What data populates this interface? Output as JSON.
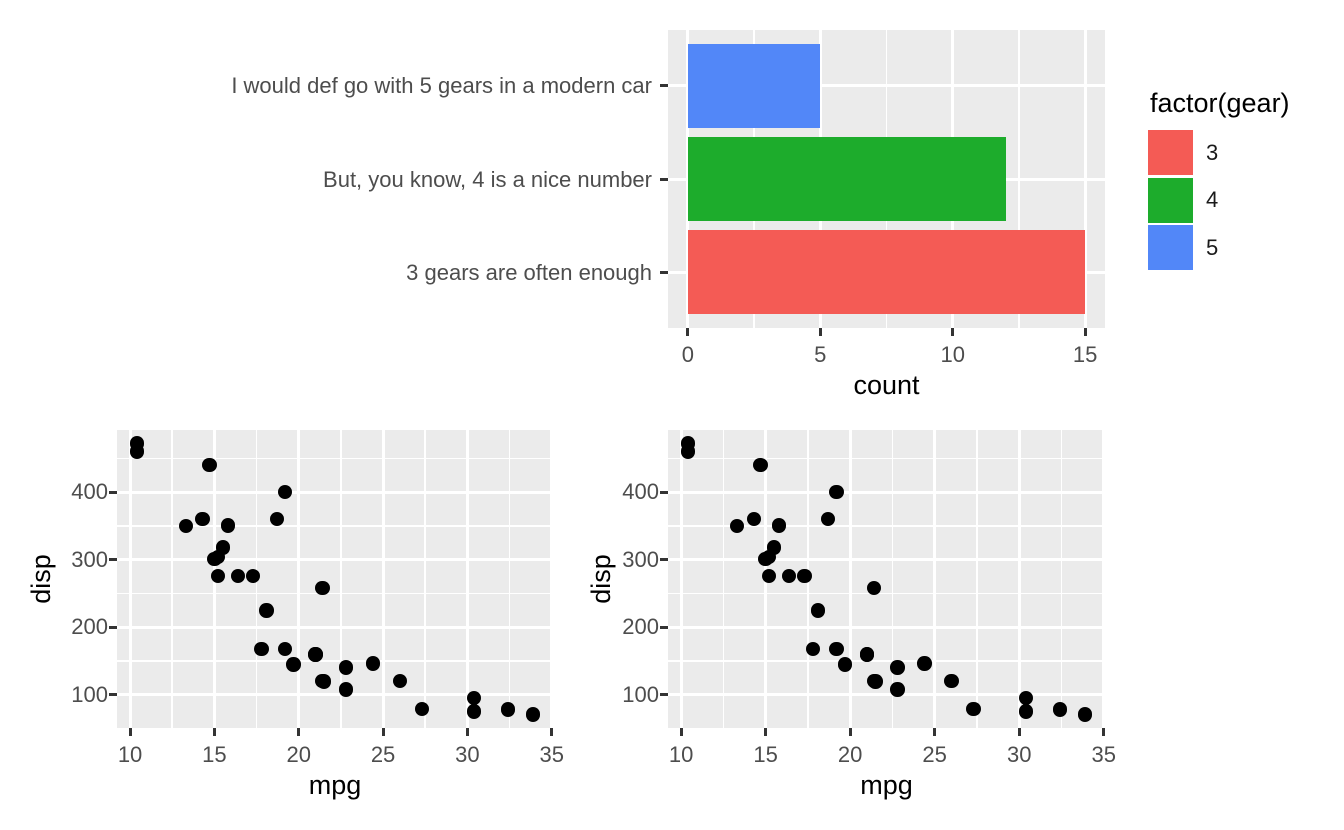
{
  "theme": {
    "background": "#FFFFFF",
    "panel_bg": "#EBEBEB",
    "grid_color": "#FFFFFF",
    "axis_text_color": "#4D4D4D",
    "axis_title_color": "#000000",
    "tick_color": "#333333",
    "point_color": "#000000"
  },
  "chart_data": [
    {
      "id": "gear-bar-chart",
      "type": "bar",
      "orientation": "horizontal",
      "xlabel": "count",
      "x_ticks": [
        0,
        5,
        10,
        15
      ],
      "xlim": [
        -0.75,
        15.75
      ],
      "grid": true,
      "rows": [
        {
          "label": "I would def go with 5 gears in a modern car",
          "gear": "5",
          "count": 5,
          "color": "#5287F8"
        },
        {
          "label": "But, you know, 4 is a nice number",
          "gear": "4",
          "count": 12,
          "color": "#1DAC2C"
        },
        {
          "label": "3 gears are often enough",
          "gear": "3",
          "count": 15,
          "color": "#F45B55"
        }
      ],
      "legend": {
        "title": "factor(gear)",
        "position": "right",
        "entries": [
          {
            "label": "3",
            "color": "#F45B55"
          },
          {
            "label": "4",
            "color": "#1DAC2C"
          },
          {
            "label": "5",
            "color": "#5287F8"
          }
        ]
      }
    },
    {
      "id": "mpg-disp-scatter-left",
      "type": "scatter",
      "xlabel": "mpg",
      "ylabel": "disp",
      "x_ticks": [
        10,
        15,
        20,
        25,
        30,
        35
      ],
      "y_ticks": [
        100,
        200,
        300,
        400
      ],
      "xlim": [
        9.225,
        35.075
      ],
      "ylim": [
        51.055,
        492.045
      ],
      "grid": true,
      "points": [
        [
          21.0,
          160
        ],
        [
          21.0,
          160
        ],
        [
          22.8,
          108
        ],
        [
          21.4,
          258
        ],
        [
          18.7,
          360
        ],
        [
          18.1,
          225
        ],
        [
          14.3,
          360
        ],
        [
          24.4,
          146.7
        ],
        [
          22.8,
          140.8
        ],
        [
          19.2,
          167.6
        ],
        [
          17.8,
          167.6
        ],
        [
          16.4,
          275.8
        ],
        [
          17.3,
          275.8
        ],
        [
          15.2,
          275.8
        ],
        [
          10.4,
          472
        ],
        [
          10.4,
          460
        ],
        [
          14.7,
          440
        ],
        [
          32.4,
          78.7
        ],
        [
          30.4,
          75.7
        ],
        [
          33.9,
          71.1
        ],
        [
          21.5,
          120.1
        ],
        [
          15.5,
          318
        ],
        [
          15.2,
          304
        ],
        [
          13.3,
          350
        ],
        [
          19.2,
          400
        ],
        [
          27.3,
          79
        ],
        [
          26.0,
          120.3
        ],
        [
          30.4,
          95.1
        ],
        [
          15.8,
          351
        ],
        [
          19.7,
          145
        ],
        [
          15.0,
          301
        ],
        [
          21.4,
          121
        ]
      ]
    },
    {
      "id": "mpg-disp-scatter-right",
      "type": "scatter",
      "xlabel": "mpg",
      "ylabel": "disp",
      "x_ticks": [
        10,
        15,
        20,
        25,
        30,
        35
      ],
      "y_ticks": [
        100,
        200,
        300,
        400
      ],
      "xlim": [
        9.225,
        35.075
      ],
      "ylim": [
        51.055,
        492.045
      ],
      "grid": true,
      "points": [
        [
          21.0,
          160
        ],
        [
          21.0,
          160
        ],
        [
          22.8,
          108
        ],
        [
          21.4,
          258
        ],
        [
          18.7,
          360
        ],
        [
          18.1,
          225
        ],
        [
          14.3,
          360
        ],
        [
          24.4,
          146.7
        ],
        [
          22.8,
          140.8
        ],
        [
          19.2,
          167.6
        ],
        [
          17.8,
          167.6
        ],
        [
          16.4,
          275.8
        ],
        [
          17.3,
          275.8
        ],
        [
          15.2,
          275.8
        ],
        [
          10.4,
          472
        ],
        [
          10.4,
          460
        ],
        [
          14.7,
          440
        ],
        [
          32.4,
          78.7
        ],
        [
          30.4,
          75.7
        ],
        [
          33.9,
          71.1
        ],
        [
          21.5,
          120.1
        ],
        [
          15.5,
          318
        ],
        [
          15.2,
          304
        ],
        [
          13.3,
          350
        ],
        [
          19.2,
          400
        ],
        [
          27.3,
          79
        ],
        [
          26.0,
          120.3
        ],
        [
          30.4,
          95.1
        ],
        [
          15.8,
          351
        ],
        [
          19.7,
          145
        ],
        [
          15.0,
          301
        ],
        [
          21.4,
          121
        ]
      ]
    }
  ]
}
